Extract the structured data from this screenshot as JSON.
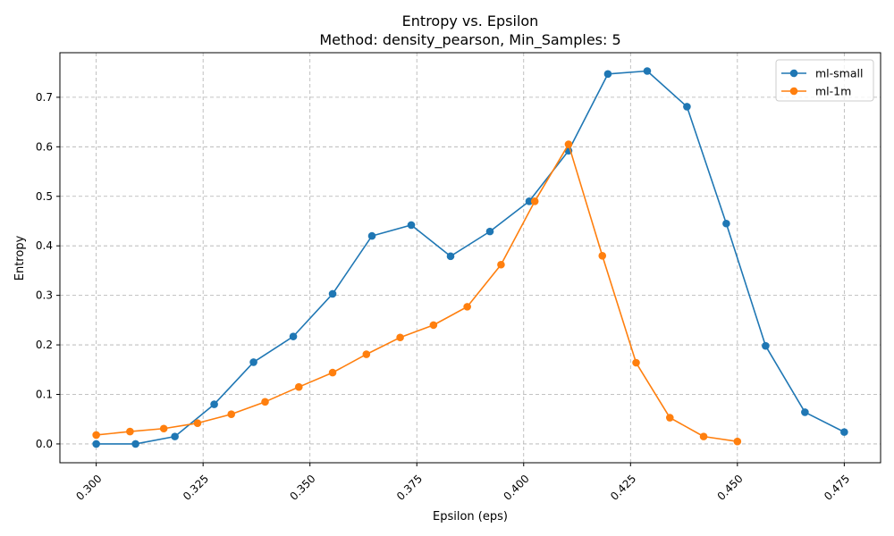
{
  "chart_data": {
    "type": "line",
    "title": "Entropy vs. Epsilon",
    "subtitle": "Method: density_pearson, Min_Samples: 5",
    "xlabel": "Epsilon (eps)",
    "ylabel": "Entropy",
    "xlim": [
      0.2915,
      0.4835
    ],
    "ylim": [
      -0.038,
      0.79
    ],
    "xticks": [
      0.3,
      0.325,
      0.35,
      0.375,
      0.4,
      0.425,
      0.45,
      0.475
    ],
    "xtick_labels": [
      "0.300",
      "0.325",
      "0.350",
      "0.375",
      "0.400",
      "0.425",
      "0.450",
      "0.475"
    ],
    "yticks": [
      0.0,
      0.1,
      0.2,
      0.3,
      0.4,
      0.5,
      0.6,
      0.7
    ],
    "ytick_labels": [
      "0.0",
      "0.1",
      "0.2",
      "0.3",
      "0.4",
      "0.5",
      "0.6",
      "0.7"
    ],
    "grid": true,
    "legend_position": "top-right",
    "series": [
      {
        "name": "ml-small",
        "color": "#1f77b4",
        "x": [
          0.3,
          0.3092,
          0.3184,
          0.3276,
          0.3368,
          0.3461,
          0.3553,
          0.3645,
          0.3737,
          0.3829,
          0.3921,
          0.4013,
          0.4105,
          0.4197,
          0.4289,
          0.4382,
          0.4474,
          0.4566,
          0.4658,
          0.475
        ],
        "y": [
          0.0,
          0.0,
          0.015,
          0.08,
          0.165,
          0.217,
          0.303,
          0.42,
          0.442,
          0.379,
          0.429,
          0.49,
          0.592,
          0.747,
          0.753,
          0.681,
          0.445,
          0.198,
          0.064,
          0.024
        ]
      },
      {
        "name": "ml-1m",
        "color": "#ff7f0e",
        "x": [
          0.3,
          0.3079,
          0.3158,
          0.3237,
          0.3316,
          0.3395,
          0.3474,
          0.3553,
          0.3632,
          0.3711,
          0.3789,
          0.3868,
          0.3947,
          0.4026,
          0.4105,
          0.4184,
          0.4263,
          0.4342,
          0.4421,
          0.45
        ],
        "y": [
          0.018,
          0.025,
          0.031,
          0.042,
          0.06,
          0.085,
          0.115,
          0.144,
          0.181,
          0.215,
          0.24,
          0.277,
          0.362,
          0.49,
          0.605,
          0.38,
          0.164,
          0.053,
          0.015,
          0.005
        ]
      }
    ]
  }
}
